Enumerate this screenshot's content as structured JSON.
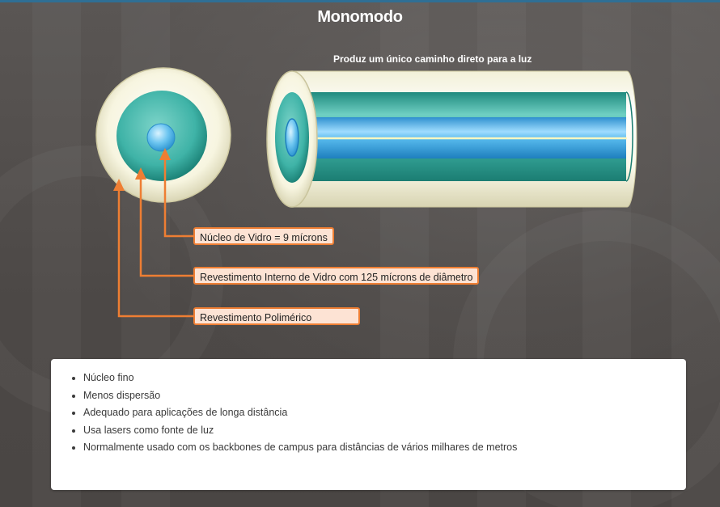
{
  "title": "Monomodo",
  "subtitle": "Produz um único caminho direto para a luz",
  "callouts": {
    "core": "Núcleo de Vidro = 9 mícrons",
    "cladding": "Revestimento Interno de Vidro com 125 mícrons de diâmetro",
    "coating": "Revestimento Polimérico"
  },
  "notes": [
    "Núcleo fino",
    "Menos dispersão",
    "Adequado para aplicações de longa distância",
    "Usa lasers como fonte de luz",
    "Normalmente usado com os backbones de campus para distâncias de vários milhares de metros"
  ],
  "colors": {
    "accent": "#ee7e33",
    "callout_fill": "#fde3d4",
    "cladding": "#3fb3a7",
    "core": "#3aa8e0",
    "coating": "#f8f6e2"
  }
}
